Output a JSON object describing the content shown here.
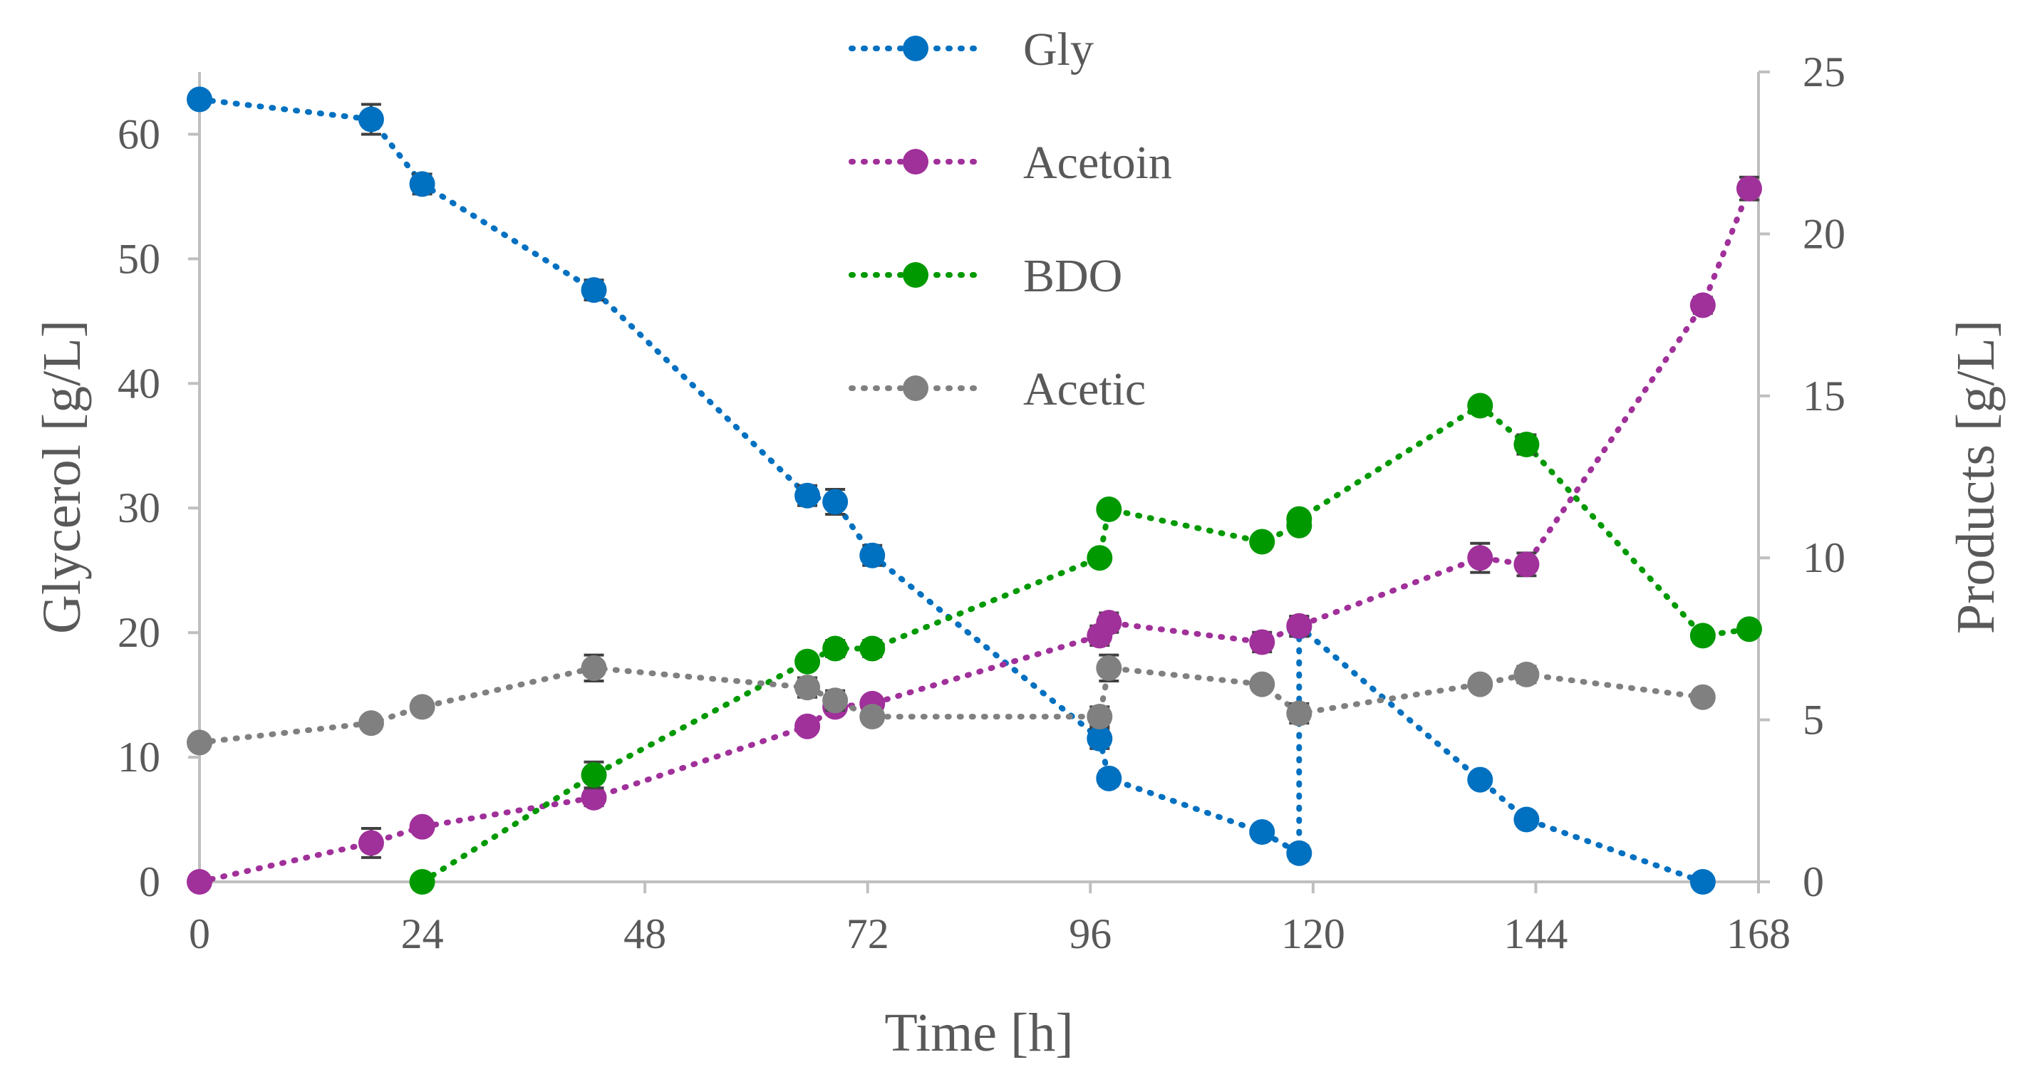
{
  "chart_data": {
    "type": "line",
    "title": "",
    "xlabel": "Time [h]",
    "ylabel_left": "Glycerol [g/L]",
    "ylabel_right": "Products [g/L]",
    "xlim": [
      0,
      168
    ],
    "ylim_left": [
      0,
      65
    ],
    "ylim_right": [
      0,
      25
    ],
    "x_ticks": [
      0,
      24,
      48,
      72,
      96,
      120,
      144,
      168
    ],
    "y_left_ticks": [
      0,
      10,
      20,
      30,
      40,
      50,
      60
    ],
    "y_right_ticks": [
      0,
      5,
      10,
      15,
      20,
      25
    ],
    "grid": false,
    "legend_position": "top-center",
    "series": [
      {
        "name": "Gly",
        "axis": "left",
        "color": "#0070C0",
        "x": [
          0,
          18.5,
          24,
          42.5,
          65.5,
          68.5,
          72.5,
          97,
          98,
          114.5,
          118.5,
          118.5,
          138,
          143,
          162
        ],
        "values": [
          62.8,
          61.2,
          56,
          47.5,
          31,
          30.5,
          26.2,
          11.5,
          8.3,
          4,
          2.3,
          20.5,
          8.2,
          5,
          0
        ],
        "errors": [
          0,
          1.2,
          0.8,
          0.8,
          0.8,
          1,
          0.8,
          0.8,
          0.6,
          0.5,
          0.6,
          0.8,
          0.5,
          0.4,
          0
        ]
      },
      {
        "name": "Acetoin",
        "axis": "right",
        "color": "#A0309A",
        "x": [
          0,
          18.5,
          24,
          42.5,
          65.5,
          68.5,
          72.5,
          97,
          98,
          114.5,
          118.5,
          138,
          143,
          162,
          167
        ],
        "values": [
          0,
          1.2,
          1.7,
          2.6,
          4.8,
          5.4,
          5.5,
          7.6,
          8,
          7.4,
          7.9,
          10,
          9.8,
          17.8,
          21.4
        ],
        "errors": [
          0,
          0.45,
          0.15,
          0.25,
          0.2,
          0.2,
          0.2,
          0.3,
          0.3,
          0.3,
          0.3,
          0.45,
          0.35,
          0.25,
          0.35
        ]
      },
      {
        "name": "BDO",
        "axis": "right",
        "color": "#009900",
        "x": [
          24,
          42.5,
          65.5,
          68.5,
          72.5,
          97,
          98,
          114.5,
          118.5,
          118.5,
          138,
          143,
          162,
          167
        ],
        "values": [
          0,
          3.3,
          6.8,
          7.2,
          7.2,
          10,
          11.5,
          10.5,
          11,
          11.2,
          14.7,
          13.5,
          7.6,
          7.8
        ],
        "errors": [
          0,
          0.4,
          0.2,
          0.25,
          0.25,
          0.2,
          0.2,
          0.2,
          0.2,
          0.2,
          0.2,
          0.3,
          0.2,
          0.15
        ]
      },
      {
        "name": "Acetic",
        "axis": "right",
        "color": "#808080",
        "x": [
          0,
          18.5,
          24,
          42.5,
          65.5,
          68.5,
          72.5,
          97,
          98,
          114.5,
          118.5,
          138,
          143,
          162
        ],
        "values": [
          4.3,
          4.9,
          5.4,
          6.6,
          6,
          5.6,
          5.1,
          5.1,
          6.6,
          6.1,
          5.2,
          6.1,
          6.4,
          5.7
        ],
        "errors": [
          0.15,
          0.15,
          0.2,
          0.4,
          0.3,
          0.3,
          0.2,
          0.3,
          0.4,
          0.2,
          0.3,
          0.2,
          0.25,
          0.2
        ]
      }
    ]
  }
}
